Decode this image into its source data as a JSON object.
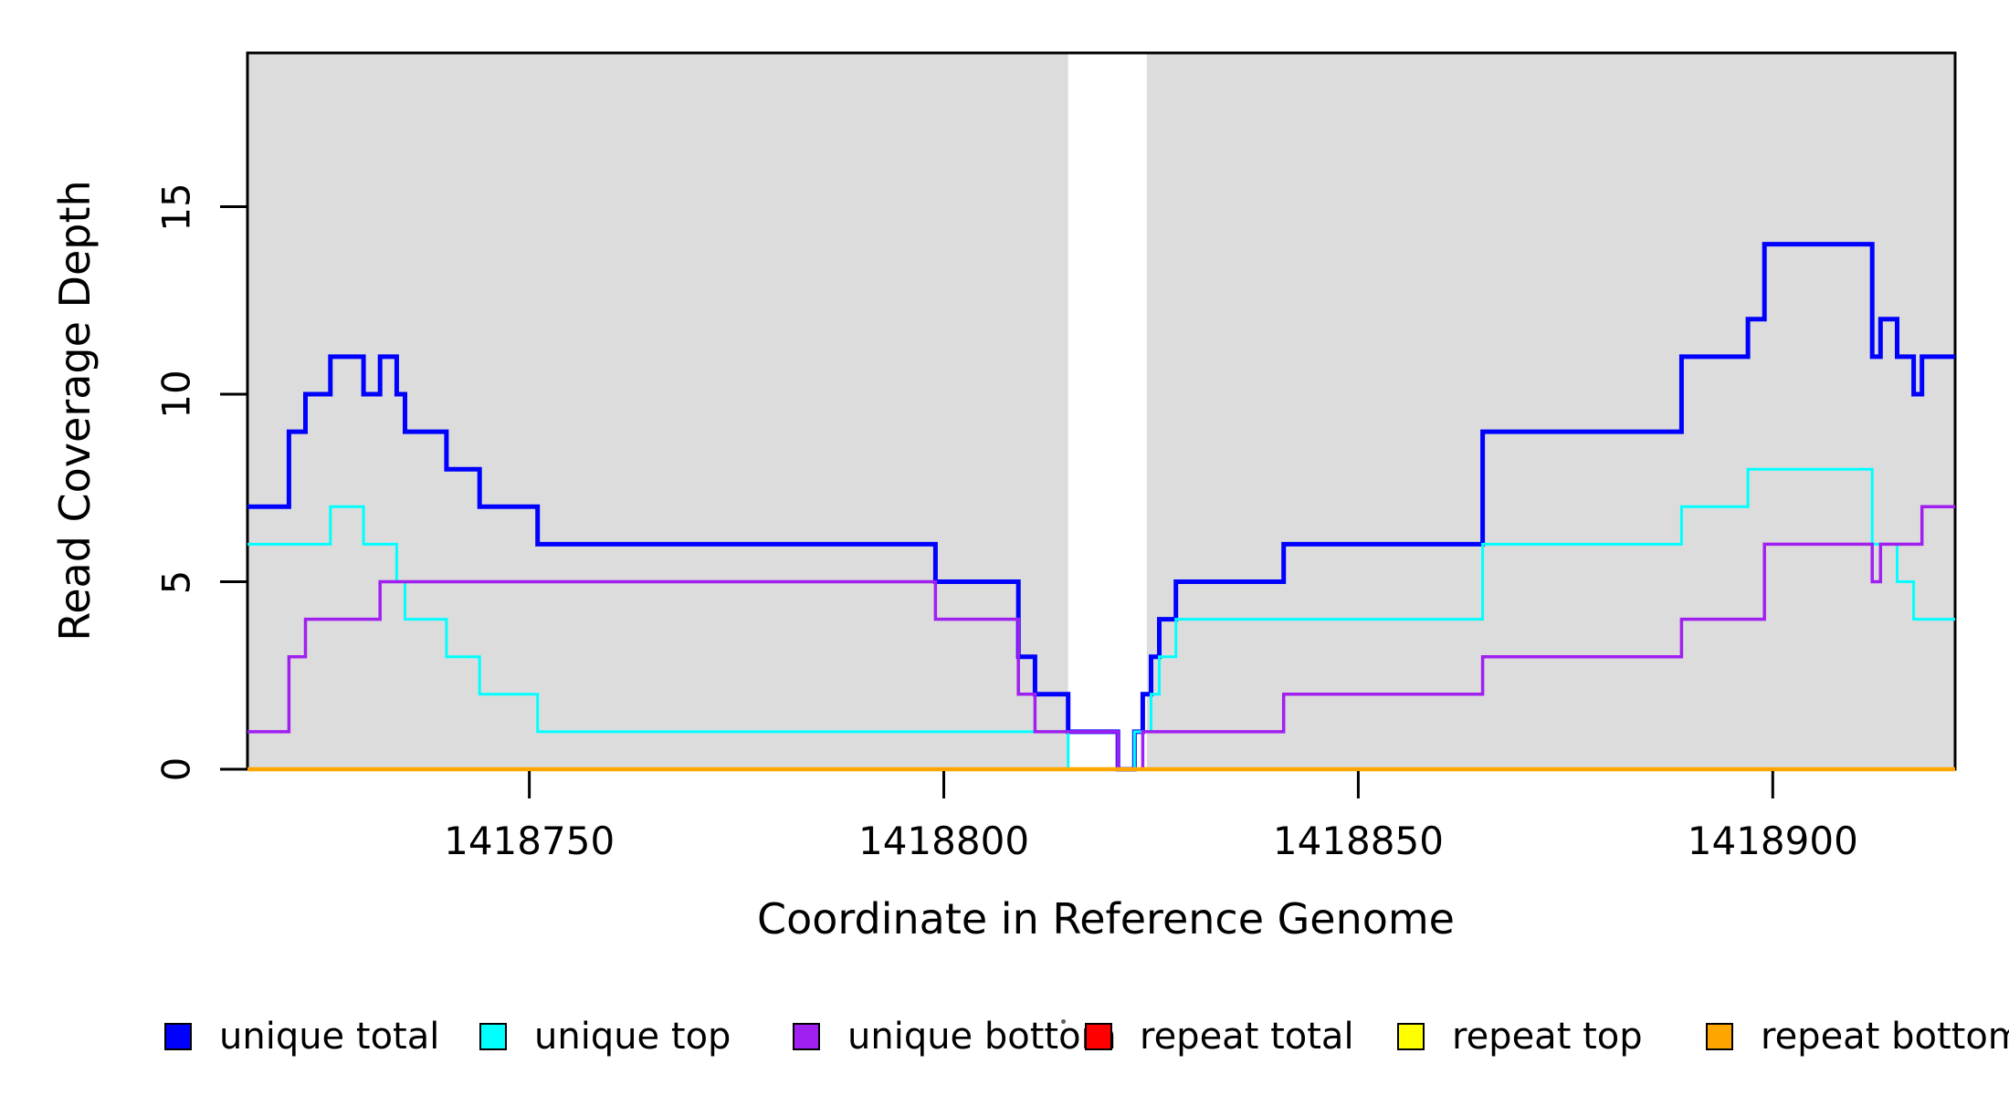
{
  "figure": {
    "x_axis_title": "Coordinate in Reference Genome",
    "y_axis_title": "Read Coverage Depth"
  },
  "legend": {
    "items": [
      {
        "label": "unique total"
      },
      {
        "label": "unique top"
      },
      {
        "label": "unique bottom"
      },
      {
        "label": "repeat total"
      },
      {
        "label": "repeat top"
      },
      {
        "label": "repeat bottom"
      }
    ]
  },
  "chart_data": {
    "type": "line",
    "subtype": "step",
    "title": "",
    "xlabel": "Coordinate in Reference Genome",
    "ylabel": "Read Coverage Depth",
    "xlim": [
      1418716,
      1418922
    ],
    "ylim": [
      0,
      19.1
    ],
    "x_ticks": [
      1418750,
      1418800,
      1418850,
      1418900
    ],
    "y_ticks": [
      0,
      5,
      10,
      15
    ],
    "grid": false,
    "legend_position": "bottom",
    "plot_border_color": "#000000",
    "shaded_region_color": "#DCDCDC",
    "shaded_regions": [
      {
        "x_start": 1418716,
        "x_end": 1418815
      },
      {
        "x_start": 1418824.5,
        "x_end": 1418922
      }
    ],
    "series": [
      {
        "name": "unique total",
        "color": "#0000FF",
        "line_width": 5,
        "steps": [
          [
            1418716,
            7
          ],
          [
            1418721,
            9
          ],
          [
            1418723,
            10
          ],
          [
            1418726,
            11
          ],
          [
            1418730,
            10
          ],
          [
            1418732,
            11
          ],
          [
            1418734,
            10
          ],
          [
            1418735,
            9
          ],
          [
            1418740,
            8
          ],
          [
            1418744,
            7
          ],
          [
            1418751,
            6
          ],
          [
            1418799,
            5
          ],
          [
            1418809,
            3
          ],
          [
            1418811,
            2
          ],
          [
            1418815,
            1
          ],
          [
            1418821,
            0
          ],
          [
            1418823,
            1
          ],
          [
            1418824,
            2
          ],
          [
            1418825,
            3
          ],
          [
            1418826,
            4
          ],
          [
            1418828,
            5
          ],
          [
            1418841,
            6
          ],
          [
            1418865,
            9
          ],
          [
            1418889,
            11
          ],
          [
            1418897,
            12
          ],
          [
            1418899,
            14
          ],
          [
            1418912,
            11
          ],
          [
            1418913,
            12
          ],
          [
            1418915,
            11
          ],
          [
            1418917,
            10
          ],
          [
            1418918,
            11
          ]
        ]
      },
      {
        "name": "unique top",
        "color": "#00FFFF",
        "line_width": 3,
        "steps": [
          [
            1418716,
            6
          ],
          [
            1418726,
            7
          ],
          [
            1418730,
            6
          ],
          [
            1418734,
            5
          ],
          [
            1418735,
            4
          ],
          [
            1418740,
            3
          ],
          [
            1418744,
            2
          ],
          [
            1418751,
            1
          ],
          [
            1418815,
            0
          ],
          [
            1418823,
            1
          ],
          [
            1418825,
            2
          ],
          [
            1418826,
            3
          ],
          [
            1418828,
            4
          ],
          [
            1418865,
            6
          ],
          [
            1418889,
            7
          ],
          [
            1418897,
            8
          ],
          [
            1418912,
            6
          ],
          [
            1418915,
            5
          ],
          [
            1418917,
            4
          ]
        ]
      },
      {
        "name": "unique bottom",
        "color": "#A020F0",
        "line_width": 3.5,
        "steps": [
          [
            1418716,
            1
          ],
          [
            1418721,
            3
          ],
          [
            1418723,
            4
          ],
          [
            1418732,
            5
          ],
          [
            1418799,
            4
          ],
          [
            1418809,
            2
          ],
          [
            1418811,
            1
          ],
          [
            1418821,
            0
          ],
          [
            1418824,
            1
          ],
          [
            1418841,
            2
          ],
          [
            1418865,
            3
          ],
          [
            1418889,
            4
          ],
          [
            1418899,
            6
          ],
          [
            1418912,
            5
          ],
          [
            1418913,
            6
          ],
          [
            1418918,
            7
          ]
        ]
      },
      {
        "name": "repeat total",
        "color": "#FF0000",
        "line_width": 2.5,
        "steps": [
          [
            1418716,
            0
          ]
        ]
      },
      {
        "name": "repeat top",
        "color": "#FFFF00",
        "line_width": 2.5,
        "steps": [
          [
            1418716,
            0
          ]
        ]
      },
      {
        "name": "repeat bottom",
        "color": "#FFA500",
        "line_width": 4.5,
        "steps": [
          [
            1418716,
            0
          ]
        ]
      }
    ]
  }
}
